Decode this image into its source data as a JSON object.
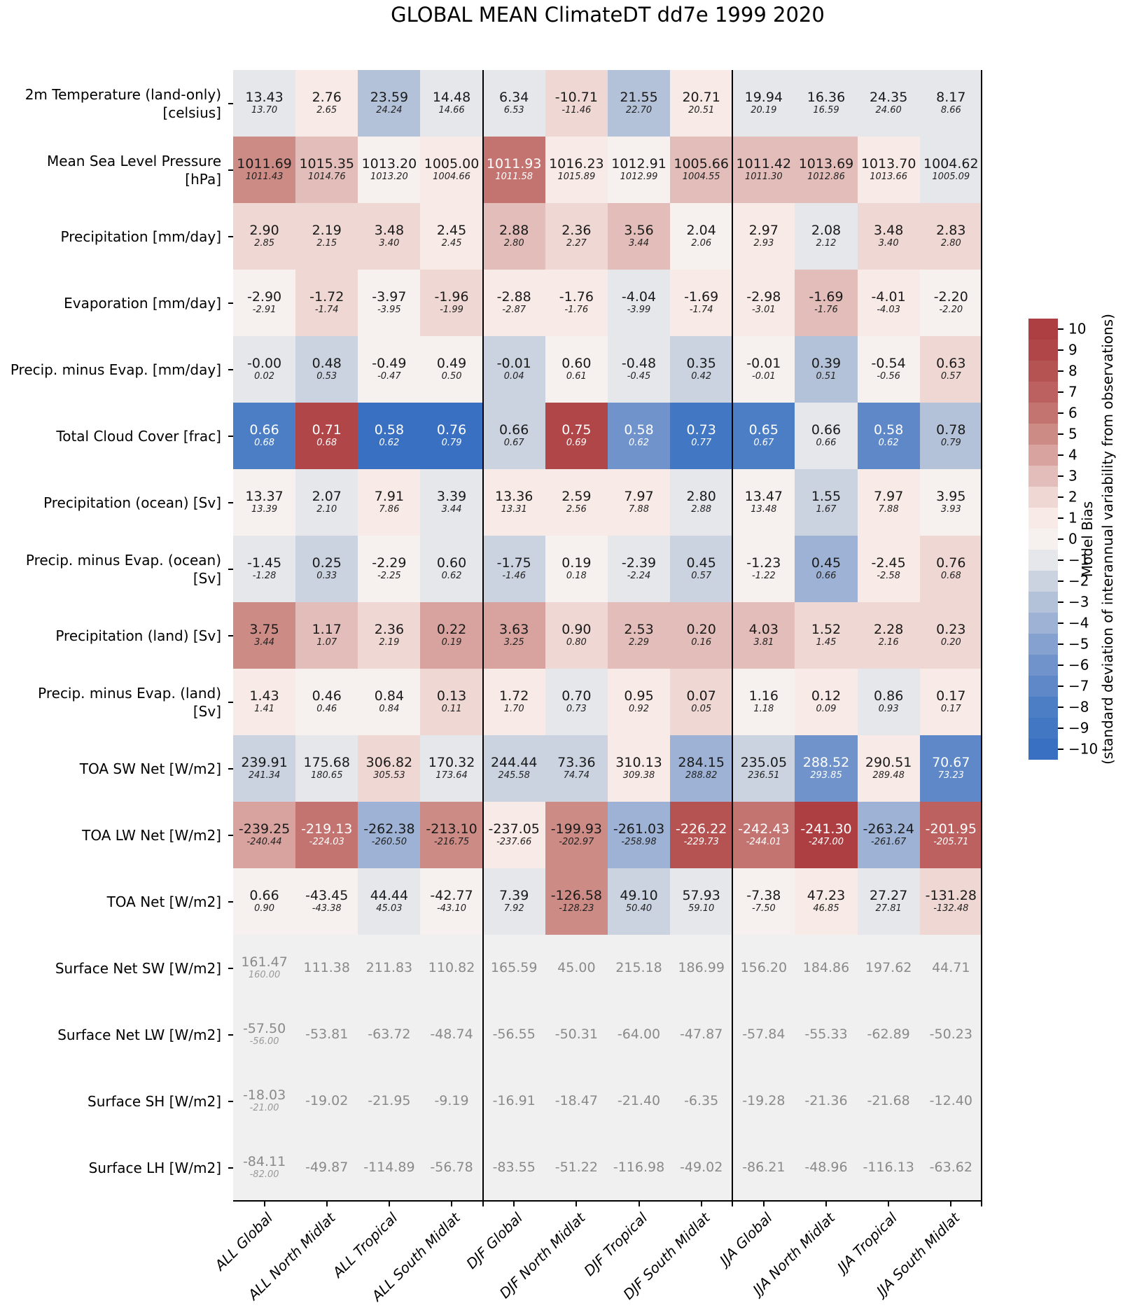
{
  "chart_data": {
    "type": "heatmap",
    "title": "GLOBAL MEAN ClimateDT dd7e 1999 2020",
    "legend_position": "right",
    "columns": [
      "ALL Global",
      "ALL North Midlat",
      "ALL Tropical",
      "ALL South Midlat",
      "DJF Global",
      "DJF North Midlat",
      "DJF Tropical",
      "DJF South Midlat",
      "JJA Global",
      "JJA North Midlat",
      "JJA Tropical",
      "JJA South Midlat"
    ],
    "group_separators_after_columns": [
      4,
      8,
      12
    ],
    "rows": [
      {
        "label_lines": [
          "2m Temperature (land-only)",
          "[celsius]"
        ],
        "values": [
          "13.43",
          "2.76",
          "23.59",
          "14.48",
          "6.34",
          "-10.71",
          "21.55",
          "20.71",
          "19.94",
          "16.36",
          "24.35",
          "8.17"
        ],
        "obs": [
          "13.70",
          "2.65",
          "24.24",
          "14.66",
          "6.53",
          "-11.46",
          "22.70",
          "20.51",
          "20.19",
          "16.59",
          "24.60",
          "8.66"
        ],
        "bias": [
          -1,
          1,
          -3,
          -1,
          -1,
          2,
          -3,
          1,
          -1,
          -1,
          -1,
          -1
        ]
      },
      {
        "label_lines": [
          "Mean Sea Level Pressure",
          "[hPa]"
        ],
        "values": [
          "1011.69",
          "1015.35",
          "1013.20",
          "1005.00",
          "1011.93",
          "1016.23",
          "1012.91",
          "1005.66",
          "1011.42",
          "1013.69",
          "1013.70",
          "1004.62"
        ],
        "obs": [
          "1011.43",
          "1014.76",
          "1013.20",
          "1004.66",
          "1011.58",
          "1015.89",
          "1012.99",
          "1004.55",
          "1011.30",
          "1012.86",
          "1013.66",
          "1005.09"
        ],
        "bias": [
          5,
          3,
          0,
          1,
          6,
          1,
          0,
          3,
          3,
          3,
          1,
          -1
        ]
      },
      {
        "label_lines": [
          "Precipitation [mm/day]"
        ],
        "values": [
          "2.90",
          "2.19",
          "3.48",
          "2.45",
          "2.88",
          "2.36",
          "3.56",
          "2.04",
          "2.97",
          "2.08",
          "3.48",
          "2.83"
        ],
        "obs": [
          "2.85",
          "2.15",
          "3.40",
          "2.45",
          "2.80",
          "2.27",
          "3.44",
          "2.06",
          "2.93",
          "2.12",
          "3.40",
          "2.80"
        ],
        "bias": [
          2,
          2,
          2,
          1,
          3,
          2,
          3,
          0,
          1,
          -1,
          2,
          2
        ]
      },
      {
        "label_lines": [
          "Evaporation [mm/day]"
        ],
        "values": [
          "-2.90",
          "-1.72",
          "-3.97",
          "-1.96",
          "-2.88",
          "-1.76",
          "-4.04",
          "-1.69",
          "-2.98",
          "-1.69",
          "-4.01",
          "-2.20"
        ],
        "obs": [
          "-2.91",
          "-1.74",
          "-3.95",
          "-1.99",
          "-2.87",
          "-1.76",
          "-3.99",
          "-1.74",
          "-3.01",
          "-1.76",
          "-4.03",
          "-2.20"
        ],
        "bias": [
          0,
          2,
          0,
          2,
          1,
          1,
          -1,
          1,
          1,
          3,
          1,
          0
        ]
      },
      {
        "label_lines": [
          "Precip. minus Evap. [mm/day]"
        ],
        "values": [
          "-0.00",
          "0.48",
          "-0.49",
          "0.49",
          "-0.01",
          "0.60",
          "-0.48",
          "0.35",
          "-0.01",
          "0.39",
          "-0.54",
          "0.63"
        ],
        "obs": [
          "0.02",
          "0.53",
          "-0.47",
          "0.50",
          "0.04",
          "0.61",
          "-0.45",
          "0.42",
          "-0.01",
          "0.51",
          "-0.56",
          "0.57"
        ],
        "bias": [
          -1,
          -2,
          0,
          0,
          -2,
          0,
          -1,
          -2,
          0,
          -3,
          0,
          2
        ]
      },
      {
        "label_lines": [
          "Total Cloud Cover [frac]"
        ],
        "values": [
          "0.66",
          "0.71",
          "0.58",
          "0.76",
          "0.66",
          "0.75",
          "0.58",
          "0.73",
          "0.65",
          "0.66",
          "0.58",
          "0.78"
        ],
        "obs": [
          "0.68",
          "0.68",
          "0.62",
          "0.79",
          "0.67",
          "0.69",
          "0.62",
          "0.77",
          "0.67",
          "0.66",
          "0.62",
          "0.79"
        ],
        "bias": [
          -8,
          9,
          -10,
          -10,
          -2,
          9,
          -6,
          -9,
          -8,
          -1,
          -7,
          -3
        ]
      },
      {
        "label_lines": [
          "Precipitation (ocean) [Sv]"
        ],
        "values": [
          "13.37",
          "2.07",
          "7.91",
          "3.39",
          "13.36",
          "2.59",
          "7.97",
          "2.80",
          "13.47",
          "1.55",
          "7.97",
          "3.95"
        ],
        "obs": [
          "13.39",
          "2.10",
          "7.86",
          "3.44",
          "13.31",
          "2.56",
          "7.88",
          "2.88",
          "13.48",
          "1.67",
          "7.88",
          "3.93"
        ],
        "bias": [
          0,
          -1,
          1,
          -1,
          1,
          1,
          1,
          -1,
          0,
          -2,
          1,
          0
        ]
      },
      {
        "label_lines": [
          "Precip. minus Evap. (ocean)",
          "[Sv]"
        ],
        "values": [
          "-1.45",
          "0.25",
          "-2.29",
          "0.60",
          "-1.75",
          "0.19",
          "-2.39",
          "0.45",
          "-1.23",
          "0.45",
          "-2.45",
          "0.76"
        ],
        "obs": [
          "-1.28",
          "0.33",
          "-2.25",
          "0.62",
          "-1.46",
          "0.18",
          "-2.24",
          "0.57",
          "-1.22",
          "0.66",
          "-2.58",
          "0.68"
        ],
        "bias": [
          -1,
          -2,
          0,
          -1,
          -2,
          0,
          -1,
          -2,
          0,
          -4,
          1,
          2
        ]
      },
      {
        "label_lines": [
          "Precipitation (land) [Sv]"
        ],
        "values": [
          "3.75",
          "1.17",
          "2.36",
          "0.22",
          "3.63",
          "0.90",
          "2.53",
          "0.20",
          "4.03",
          "1.52",
          "2.28",
          "0.23"
        ],
        "obs": [
          "3.44",
          "1.07",
          "2.19",
          "0.19",
          "3.25",
          "0.80",
          "2.29",
          "0.16",
          "3.81",
          "1.45",
          "2.16",
          "0.20"
        ],
        "bias": [
          5,
          3,
          2,
          4,
          4,
          2,
          3,
          3,
          3,
          2,
          2,
          2
        ]
      },
      {
        "label_lines": [
          "Precip. minus Evap. (land)",
          "[Sv]"
        ],
        "values": [
          "1.43",
          "0.46",
          "0.84",
          "0.13",
          "1.72",
          "0.70",
          "0.95",
          "0.07",
          "1.16",
          "0.12",
          "0.86",
          "0.17"
        ],
        "obs": [
          "1.41",
          "0.46",
          "0.84",
          "0.11",
          "1.70",
          "0.73",
          "0.92",
          "0.05",
          "1.18",
          "0.09",
          "0.93",
          "0.17"
        ],
        "bias": [
          1,
          0,
          0,
          2,
          1,
          -1,
          1,
          2,
          0,
          1,
          -1,
          1
        ]
      },
      {
        "label_lines": [
          "TOA SW Net [W/m2]"
        ],
        "values": [
          "239.91",
          "175.68",
          "306.82",
          "170.32",
          "244.44",
          "73.36",
          "310.13",
          "284.15",
          "235.05",
          "288.52",
          "290.51",
          "70.67"
        ],
        "obs": [
          "241.34",
          "180.65",
          "305.53",
          "173.64",
          "245.58",
          "74.74",
          "309.38",
          "288.82",
          "236.51",
          "293.85",
          "289.48",
          "73.23"
        ],
        "bias": [
          -2,
          -1,
          2,
          -1,
          -2,
          -2,
          1,
          -4,
          -2,
          -6,
          1,
          -7
        ]
      },
      {
        "label_lines": [
          "TOA LW Net [W/m2]"
        ],
        "values": [
          "-239.25",
          "-219.13",
          "-262.38",
          "-213.10",
          "-237.05",
          "-199.93",
          "-261.03",
          "-226.22",
          "-242.43",
          "-241.30",
          "-263.24",
          "-201.95"
        ],
        "obs": [
          "-240.44",
          "-224.03",
          "-260.50",
          "-216.75",
          "-237.66",
          "-202.97",
          "-258.98",
          "-229.73",
          "-244.01",
          "-247.00",
          "-261.67",
          "-205.71"
        ],
        "bias": [
          4,
          6,
          -4,
          5,
          1,
          5,
          -4,
          8,
          6,
          10,
          -4,
          7
        ]
      },
      {
        "label_lines": [
          "TOA Net [W/m2]"
        ],
        "values": [
          "0.66",
          "-43.45",
          "44.44",
          "-42.77",
          "7.39",
          "-126.58",
          "49.10",
          "57.93",
          "-7.38",
          "47.23",
          "27.27",
          "-131.28"
        ],
        "obs": [
          "0.90",
          "-43.38",
          "45.03",
          "-43.10",
          "7.92",
          "-128.23",
          "50.40",
          "59.10",
          "-7.50",
          "46.85",
          "27.81",
          "-132.48"
        ],
        "bias": [
          0,
          0,
          -1,
          0,
          -1,
          5,
          -2,
          -1,
          0,
          1,
          -1,
          2
        ]
      },
      {
        "label_lines": [
          "Surface Net SW [W/m2]"
        ],
        "values": [
          "161.47",
          "111.38",
          "211.83",
          "110.82",
          "165.59",
          "45.00",
          "215.18",
          "186.99",
          "156.20",
          "184.86",
          "197.62",
          "44.71"
        ],
        "obs": [
          "160.00",
          null,
          null,
          null,
          null,
          null,
          null,
          null,
          null,
          null,
          null,
          null
        ],
        "bias": null
      },
      {
        "label_lines": [
          "Surface Net LW [W/m2]"
        ],
        "values": [
          "-57.50",
          "-53.81",
          "-63.72",
          "-48.74",
          "-56.55",
          "-50.31",
          "-64.00",
          "-47.87",
          "-57.84",
          "-55.33",
          "-62.89",
          "-50.23"
        ],
        "obs": [
          "-56.00",
          null,
          null,
          null,
          null,
          null,
          null,
          null,
          null,
          null,
          null,
          null
        ],
        "bias": null
      },
      {
        "label_lines": [
          "Surface SH [W/m2]"
        ],
        "values": [
          "-18.03",
          "-19.02",
          "-21.95",
          "-9.19",
          "-16.91",
          "-18.47",
          "-21.40",
          "-6.35",
          "-19.28",
          "-21.36",
          "-21.68",
          "-12.40"
        ],
        "obs": [
          "-21.00",
          null,
          null,
          null,
          null,
          null,
          null,
          null,
          null,
          null,
          null,
          null
        ],
        "bias": null
      },
      {
        "label_lines": [
          "Surface LH [W/m2]"
        ],
        "values": [
          "-84.11",
          "-49.87",
          "-114.89",
          "-56.78",
          "-83.55",
          "-51.22",
          "-116.98",
          "-49.02",
          "-86.21",
          "-48.96",
          "-116.13",
          "-63.62"
        ],
        "obs": [
          "-82.00",
          null,
          null,
          null,
          null,
          null,
          null,
          null,
          null,
          null,
          null,
          null
        ],
        "bias": null
      }
    ],
    "colorbar": {
      "label_line1": "Model Bias",
      "label_line2": "(standard deviation of interannual variability from observations)",
      "range": [
        -10,
        10
      ],
      "ticks_top_to_bottom": [
        "10",
        "9",
        "8",
        "7",
        "6",
        "5",
        "4",
        "3",
        "2",
        "1",
        "0",
        "−1",
        "−2",
        "−3",
        "−4",
        "−5",
        "−6",
        "−7",
        "−8",
        "−9",
        "−10"
      ],
      "palette_minus10_to_plus10": [
        "#3a70c1",
        "#4277c3",
        "#4c7ec5",
        "#5e88c8",
        "#7093cb",
        "#85a1cf",
        "#9db2d4",
        "#b4c2d9",
        "#cbd3e0",
        "#e5e7eb",
        "#f6f0ee",
        "#f8eae7",
        "#efd7d3",
        "#e3bdb9",
        "#d8a39e",
        "#cd8b86",
        "#c37470",
        "#bc615f",
        "#b45351",
        "#b04647",
        "#ad3e42"
      ],
      "no_bias_cell_color": "#f1f0f0",
      "white_text_abs_bias_threshold": 6
    }
  }
}
